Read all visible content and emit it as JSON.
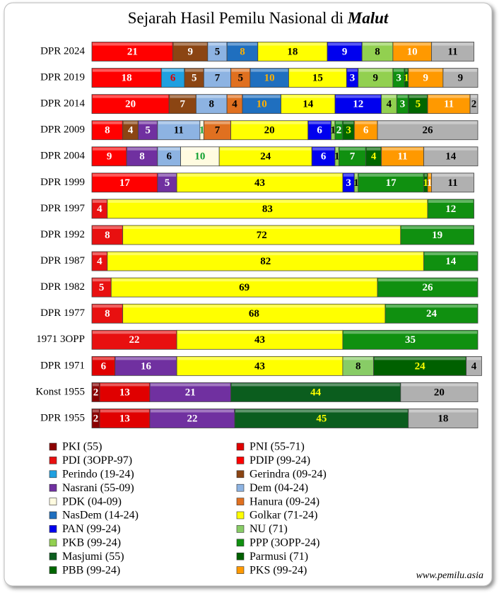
{
  "chart_data": {
    "type": "bar",
    "orientation": "horizontal",
    "stacked": true,
    "title": "Sejarah Hasil Pemilu Nasional di",
    "title_emphasis": "Malut",
    "footer": "www.pemilu.asia",
    "categories": [
      "DPR 2024",
      "DPR 2019",
      "DPR 2014",
      "DPR 2009",
      "DPR 2004",
      "DPR 1999",
      "DPR 1997",
      "DPR 1992",
      "DPR 1987",
      "DPR 1982",
      "DPR 1977",
      "1971 3OPP",
      "DPR 1971",
      "Konst 1955",
      "DPR 1955"
    ],
    "xlim": [
      0,
      100
    ],
    "series": [
      {
        "name": "PKI (55)",
        "color": "#8b0000",
        "label_color": "#ffffff",
        "values": [
          null,
          null,
          null,
          null,
          null,
          null,
          null,
          null,
          null,
          null,
          null,
          null,
          null,
          2,
          2
        ]
      },
      {
        "name": "PNI (55-71)",
        "color": "#e00000",
        "label_color": "#ffffff",
        "values": [
          null,
          null,
          null,
          null,
          null,
          null,
          null,
          null,
          null,
          null,
          null,
          null,
          6,
          13,
          13
        ]
      },
      {
        "name": "PDI (3OPP-97)",
        "color": "#e81010",
        "label_color": "#ffffff",
        "values": [
          null,
          null,
          null,
          null,
          null,
          null,
          4,
          8,
          4,
          5,
          8,
          22,
          null,
          null,
          null
        ]
      },
      {
        "name": "PDIP (99-24)",
        "color": "#ff0000",
        "label_color": "#ffffff",
        "values": [
          21,
          18,
          20,
          8,
          9,
          17,
          null,
          null,
          null,
          null,
          null,
          null,
          null,
          null,
          null
        ]
      },
      {
        "name": "Perindo (19-24)",
        "color": "#1fa0e0",
        "label_color": "#e00000",
        "values": [
          null,
          6,
          null,
          null,
          null,
          null,
          null,
          null,
          null,
          null,
          null,
          null,
          null,
          null,
          null
        ]
      },
      {
        "name": "Gerindra (09-24)",
        "color": "#8b4513",
        "label_color": "#ffffff",
        "values": [
          9,
          5,
          7,
          4,
          null,
          null,
          null,
          null,
          null,
          null,
          null,
          null,
          null,
          null,
          null
        ]
      },
      {
        "name": "Nasrani (55-09)",
        "color": "#7030a0",
        "label_color": "#ffffff",
        "values": [
          null,
          null,
          null,
          5,
          8,
          5,
          null,
          null,
          null,
          null,
          null,
          null,
          16,
          21,
          22
        ]
      },
      {
        "name": "Dem (04-24)",
        "color": "#8db3e2",
        "label_color": "#000000",
        "values": [
          5,
          7,
          8,
          11,
          6,
          null,
          null,
          null,
          null,
          null,
          null,
          null,
          null,
          null,
          null
        ]
      },
      {
        "name": "PDK (04-09)",
        "color": "#fffbe0",
        "label_color": "#10a030",
        "values": [
          null,
          null,
          null,
          1,
          10,
          null,
          null,
          null,
          null,
          null,
          null,
          null,
          null,
          null,
          null
        ]
      },
      {
        "name": "Hanura (09-24)",
        "color": "#e07020",
        "label_color": "#000000",
        "values": [
          null,
          5,
          4,
          7,
          null,
          null,
          null,
          null,
          null,
          null,
          null,
          null,
          null,
          null,
          null
        ]
      },
      {
        "name": "NasDem (14-24)",
        "color": "#1f6fbf",
        "label_color": "#ffb000",
        "values": [
          8,
          10,
          10,
          null,
          null,
          null,
          null,
          null,
          null,
          null,
          null,
          null,
          null,
          null,
          null
        ]
      },
      {
        "name": "Golkar (71-24)",
        "color": "#ffff00",
        "label_color": "#000000",
        "values": [
          18,
          15,
          14,
          20,
          24,
          43,
          83,
          72,
          82,
          69,
          68,
          43,
          43,
          null,
          null
        ]
      },
      {
        "name": "PAN (99-24)",
        "color": "#0000ee",
        "label_color": "#ffffff",
        "values": [
          9,
          3,
          12,
          6,
          6,
          3,
          null,
          null,
          null,
          null,
          null,
          null,
          null,
          null,
          null
        ]
      },
      {
        "name": "NU (71)",
        "color": "#88cc66",
        "label_color": "#000000",
        "values": [
          null,
          null,
          null,
          null,
          null,
          null,
          null,
          null,
          null,
          null,
          null,
          null,
          8,
          null,
          null
        ]
      },
      {
        "name": "PKB (99-24)",
        "color": "#92d050",
        "label_color": "#000000",
        "values": [
          8,
          9,
          4,
          1,
          1,
          1,
          null,
          null,
          null,
          null,
          null,
          null,
          null,
          null,
          null
        ]
      },
      {
        "name": "PPP (3OPP-24)",
        "color": "#109010",
        "label_color": "#ffffff",
        "values": [
          null,
          3,
          3,
          2,
          7,
          17,
          12,
          19,
          14,
          26,
          24,
          35,
          null,
          null,
          null
        ]
      },
      {
        "name": "Masjumi (55)",
        "color": "#0b5d1e",
        "label_color": "#ffff00",
        "values": [
          null,
          null,
          null,
          null,
          null,
          null,
          null,
          null,
          null,
          null,
          null,
          null,
          null,
          44,
          45
        ]
      },
      {
        "name": "Parmusi (71)",
        "color": "#006000",
        "label_color": "#ffff00",
        "values": [
          null,
          null,
          null,
          null,
          null,
          null,
          null,
          null,
          null,
          null,
          null,
          null,
          24,
          null,
          null
        ]
      },
      {
        "name": "PBB (99-24)",
        "color": "#006600",
        "label_color": "#ffff00",
        "values": [
          null,
          1,
          5,
          3,
          4,
          1,
          null,
          null,
          null,
          null,
          null,
          null,
          null,
          null,
          null
        ]
      },
      {
        "name": "PKS (99-24)",
        "color": "#ff9900",
        "label_color": "#ffffff",
        "values": [
          10,
          9,
          11,
          6,
          11,
          1,
          null,
          null,
          null,
          null,
          null,
          null,
          null,
          null,
          null
        ]
      },
      {
        "color": "#b0b0b0",
        "label_color": "#000000",
        "values": [
          11,
          9,
          2,
          26,
          14,
          11,
          null,
          null,
          null,
          null,
          null,
          null,
          4,
          20,
          18
        ]
      }
    ]
  }
}
